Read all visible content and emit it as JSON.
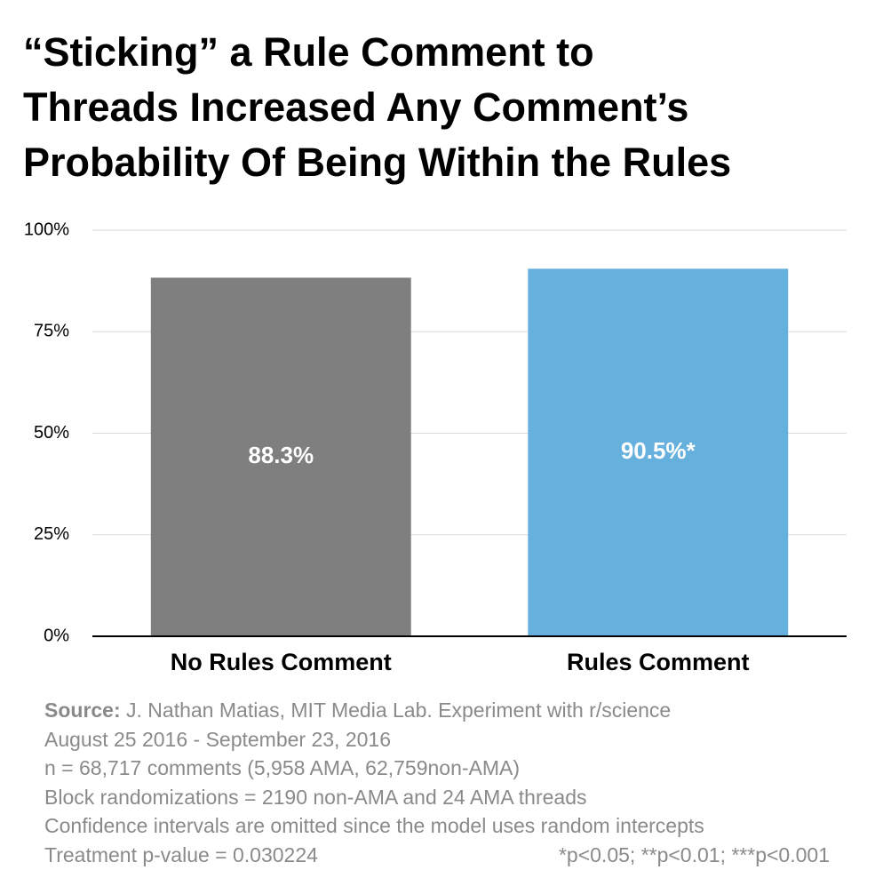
{
  "chart_data": {
    "type": "bar",
    "title_lines": [
      "“Sticking” a Rule Comment to",
      "Threads Increased Any Comment’s",
      "Probability Of Being Within the Rules"
    ],
    "categories": [
      "No Rules Comment",
      "Rules Comment"
    ],
    "values": [
      88.3,
      90.5
    ],
    "data_labels": [
      "88.3%",
      "90.5%*"
    ],
    "bar_colors": [
      "#7f7f7f",
      "#66b0dd"
    ],
    "ylim": [
      0,
      100
    ],
    "yticks": [
      0,
      25,
      50,
      75,
      100
    ],
    "ytick_labels": [
      "0%",
      "25%",
      "50%",
      "75%",
      "100%"
    ],
    "grid": true,
    "xlabel": "",
    "ylabel": ""
  },
  "notes": {
    "source_label": "Source:",
    "source_text": " J. Nathan Matias, MIT Media Lab. Experiment with r/science",
    "lines": [
      "August 25 2016 - September 23, 2016",
      "n = 68,717 comments (5,958 AMA, 62,759non-AMA)",
      "Block randomizations = 2190 non-AMA and 24 AMA threads",
      "Confidence intervals are omitted since the model uses random intercepts"
    ],
    "p_value": "Treatment p-value = 0.030224",
    "significance": "*p<0.05; **p<0.01; ***p<0.001"
  }
}
